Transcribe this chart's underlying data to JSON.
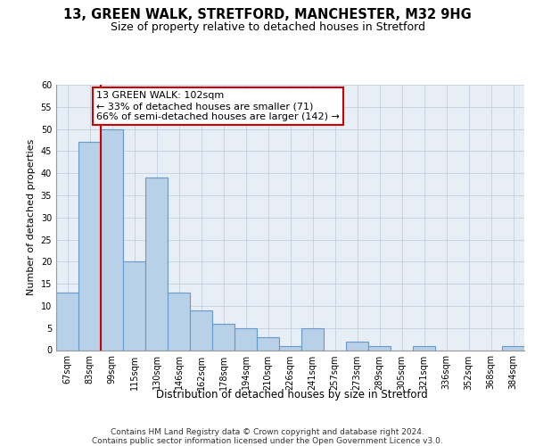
{
  "title1": "13, GREEN WALK, STRETFORD, MANCHESTER, M32 9HG",
  "title2": "Size of property relative to detached houses in Stretford",
  "xlabel": "Distribution of detached houses by size in Stretford",
  "ylabel": "Number of detached properties",
  "categories": [
    "67sqm",
    "83sqm",
    "99sqm",
    "115sqm",
    "130sqm",
    "146sqm",
    "162sqm",
    "178sqm",
    "194sqm",
    "210sqm",
    "226sqm",
    "241sqm",
    "257sqm",
    "273sqm",
    "289sqm",
    "305sqm",
    "321sqm",
    "336sqm",
    "352sqm",
    "368sqm",
    "384sqm"
  ],
  "values": [
    13,
    47,
    50,
    20,
    39,
    13,
    9,
    6,
    5,
    3,
    1,
    5,
    0,
    2,
    1,
    0,
    1,
    0,
    0,
    0,
    1
  ],
  "bar_color": "#b8d0e8",
  "bar_edge_color": "#6699cc",
  "property_line_color": "#cc0000",
  "property_line_index": 2,
  "annotation_text": "13 GREEN WALK: 102sqm\n← 33% of detached houses are smaller (71)\n66% of semi-detached houses are larger (142) →",
  "annotation_box_color": "#cc0000",
  "ylim_max": 60,
  "yticks": [
    0,
    5,
    10,
    15,
    20,
    25,
    30,
    35,
    40,
    45,
    50,
    55,
    60
  ],
  "grid_color": "#c8d4e4",
  "plot_bg_color": "#e8eef6",
  "footnote": "Contains HM Land Registry data © Crown copyright and database right 2024.\nContains public sector information licensed under the Open Government Licence v3.0.",
  "title1_fontsize": 10.5,
  "title2_fontsize": 9,
  "xlabel_fontsize": 8.5,
  "ylabel_fontsize": 8,
  "tick_fontsize": 7,
  "annot_fontsize": 8,
  "footnote_fontsize": 6.5
}
